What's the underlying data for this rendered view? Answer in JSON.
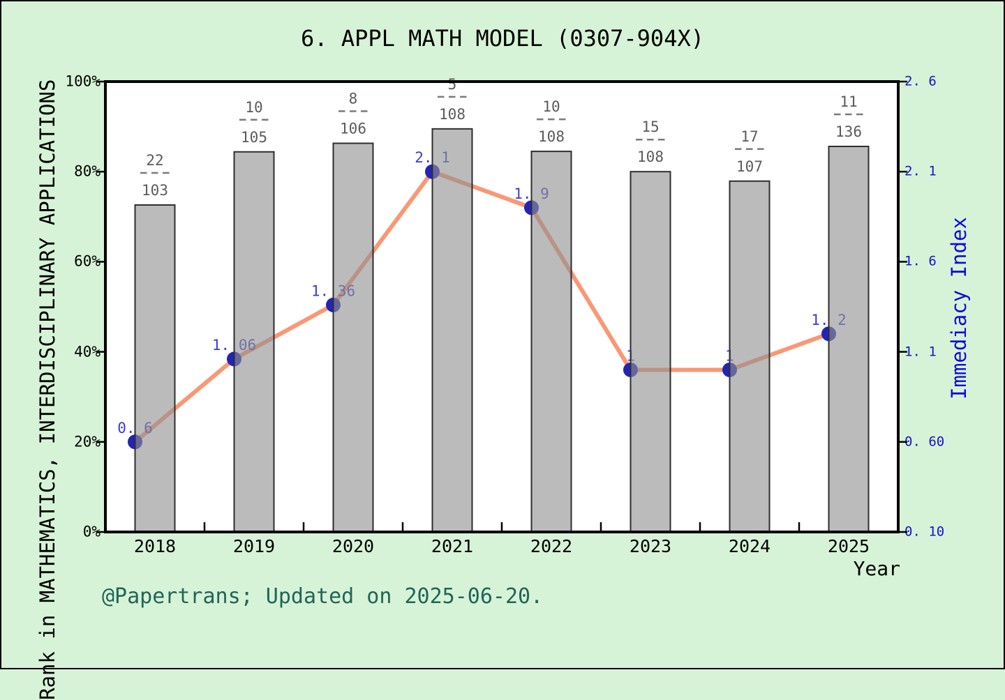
{
  "header": {
    "title": "6.  APPL MATH MODEL (0307-904X)"
  },
  "footer": {
    "text": "@Papertrans; Updated on 2025-06-20."
  },
  "axes": {
    "left_title": "Rank in MATHEMATICS, INTERDISCIPLINARY APPLICATIONS",
    "right_title": "Immediacy Index",
    "x_title": "Year"
  },
  "colors": {
    "background": "#d7f3d7",
    "plot_background": "#ffffff",
    "frame": "#000000",
    "bar_fill_rgba": "rgba(145,145,145,0.62)",
    "bar_fill_over_white": "#bebebe",
    "bar_edge": "#2e2e2e",
    "line": "#fa9774",
    "marker": "#2424b4",
    "point_label": "#3b3bd0",
    "fraction_label": "#5a5a5a",
    "fraction_divider": "#7a7a7a",
    "right_axis_text": "#1414d2",
    "footer_text": "#1f6558"
  },
  "chart_data": {
    "type": "bar+line",
    "title": "6.  APPL MATH MODEL (0307-904X)",
    "categories": [
      "2018",
      "2019",
      "2020",
      "2021",
      "2022",
      "2023",
      "2024",
      "2025"
    ],
    "series": [
      {
        "name": "rank-percentile-bars",
        "axis": "left",
        "unit": "%",
        "values": [
          72.6,
          84.4,
          86.3,
          89.5,
          84.5,
          80.0,
          77.9,
          85.6
        ]
      },
      {
        "name": "immediacy-index-line",
        "axis": "right",
        "values": [
          0.6,
          1.06,
          1.36,
          2.1,
          1.9,
          1.0,
          1.0,
          1.2
        ]
      }
    ],
    "point_labels": [
      "0. 6",
      "1. 06",
      "1. 36",
      "2. 1",
      "1. 9",
      "1",
      "1",
      "1. 2"
    ],
    "bar_fraction_labels": [
      {
        "numerator": "22",
        "denominator": "103"
      },
      {
        "numerator": "10",
        "denominator": "105"
      },
      {
        "numerator": "8",
        "denominator": "106"
      },
      {
        "numerator": "5",
        "denominator": "108"
      },
      {
        "numerator": "10",
        "denominator": "108"
      },
      {
        "numerator": "15",
        "denominator": "108"
      },
      {
        "numerator": "17",
        "denominator": "107"
      },
      {
        "numerator": "11",
        "denominator": "136"
      }
    ],
    "left_axis_ticks": [
      "0%",
      "20%",
      "40%",
      "60%",
      "80%",
      "100%"
    ],
    "left_axis_tick_values": [
      0,
      20,
      40,
      60,
      80,
      100
    ],
    "left_axis_range": [
      0,
      100
    ],
    "right_axis_ticks": [
      "0. 10",
      "0. 60",
      "1. 1",
      "1. 6",
      "2. 1",
      "2. 6"
    ],
    "right_axis_tick_values": [
      0.1,
      0.6,
      1.1,
      1.6,
      2.1,
      2.6
    ],
    "right_axis_range": [
      0.1,
      2.6
    ],
    "xlabel": "Year",
    "ylabel_left": "Rank in MATHEMATICS, INTERDISCIPLINARY APPLICATIONS",
    "ylabel_right": "Immediacy Index",
    "grid": false,
    "legend": false
  }
}
